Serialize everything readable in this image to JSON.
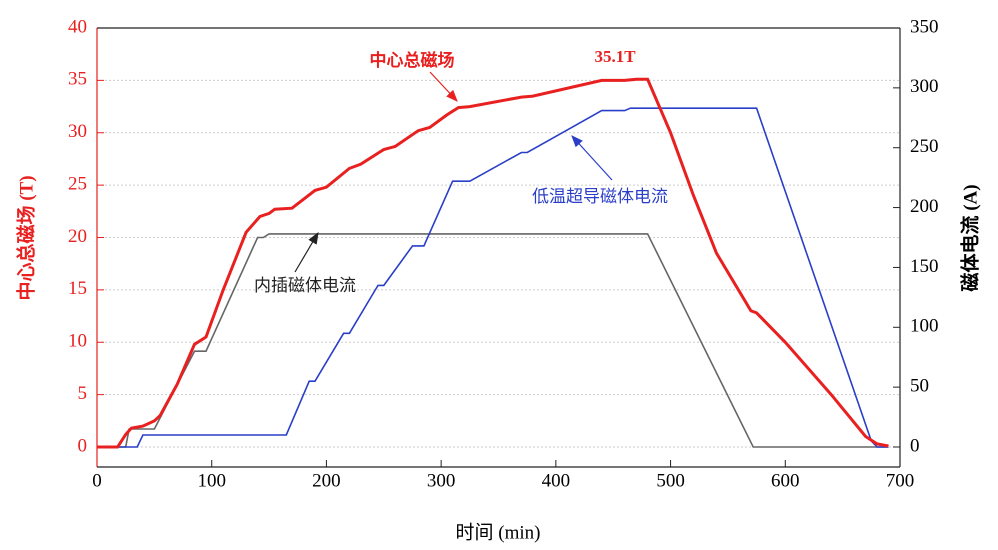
{
  "chart_data": {
    "type": "line",
    "xlabel": "时间 (min)",
    "ylabel": "中心总磁场 (T)",
    "y2label": "磁体电流 (A)",
    "xlim": [
      0,
      700
    ],
    "xticks": [
      0,
      100,
      200,
      300,
      400,
      500,
      600,
      700
    ],
    "ylim": [
      0,
      40
    ],
    "yticks": [
      0,
      5,
      10,
      15,
      20,
      25,
      30,
      35,
      40
    ],
    "y2lim": [
      0,
      350
    ],
    "y2ticks": [
      0,
      50,
      100,
      150,
      200,
      250,
      300,
      350
    ],
    "grid": true,
    "annotations": [
      "35.1T"
    ],
    "series": [
      {
        "name": "中心总磁场",
        "color": "#e8201f",
        "axis": "y",
        "x": [
          0,
          18,
          25,
          30,
          40,
          50,
          55,
          70,
          85,
          95,
          110,
          130,
          142,
          150,
          155,
          170,
          190,
          200,
          220,
          230,
          250,
          260,
          280,
          290,
          305,
          315,
          325,
          370,
          380,
          440,
          460,
          470,
          480,
          500,
          520,
          540,
          570,
          575,
          600,
          640,
          670,
          680,
          690
        ],
        "values": [
          0,
          0,
          1.2,
          1.8,
          2,
          2.5,
          3,
          6,
          9.8,
          10.5,
          15,
          20.5,
          22,
          22.3,
          22.7,
          22.8,
          24.5,
          24.8,
          26.6,
          27,
          28.4,
          28.7,
          30.2,
          30.5,
          31.7,
          32.4,
          32.5,
          33.4,
          33.5,
          35,
          35,
          35.1,
          35.1,
          30,
          24,
          18.5,
          13,
          12.8,
          10,
          5,
          1,
          0.3,
          0.1
        ]
      },
      {
        "name": "低温超导磁体电流",
        "color": "#2a3fc8",
        "axis": "y2",
        "x": [
          0,
          35,
          40,
          165,
          185,
          190,
          215,
          220,
          245,
          250,
          275,
          285,
          310,
          325,
          370,
          375,
          440,
          460,
          465,
          575,
          675,
          680,
          690
        ],
        "values": [
          0,
          0,
          10,
          10,
          55,
          55,
          95,
          95,
          135,
          135,
          168,
          168,
          222,
          222,
          246,
          246,
          281,
          281,
          283,
          283,
          5,
          0,
          0
        ]
      },
      {
        "name": "内插磁体电流",
        "color": "#666666",
        "axis": "y2",
        "x": [
          0,
          25,
          28,
          50,
          85,
          95,
          140,
          145,
          150,
          480,
          572,
          690
        ],
        "values": [
          0,
          0,
          15,
          15,
          80,
          80,
          175,
          175,
          178,
          178,
          0,
          0
        ]
      }
    ]
  }
}
